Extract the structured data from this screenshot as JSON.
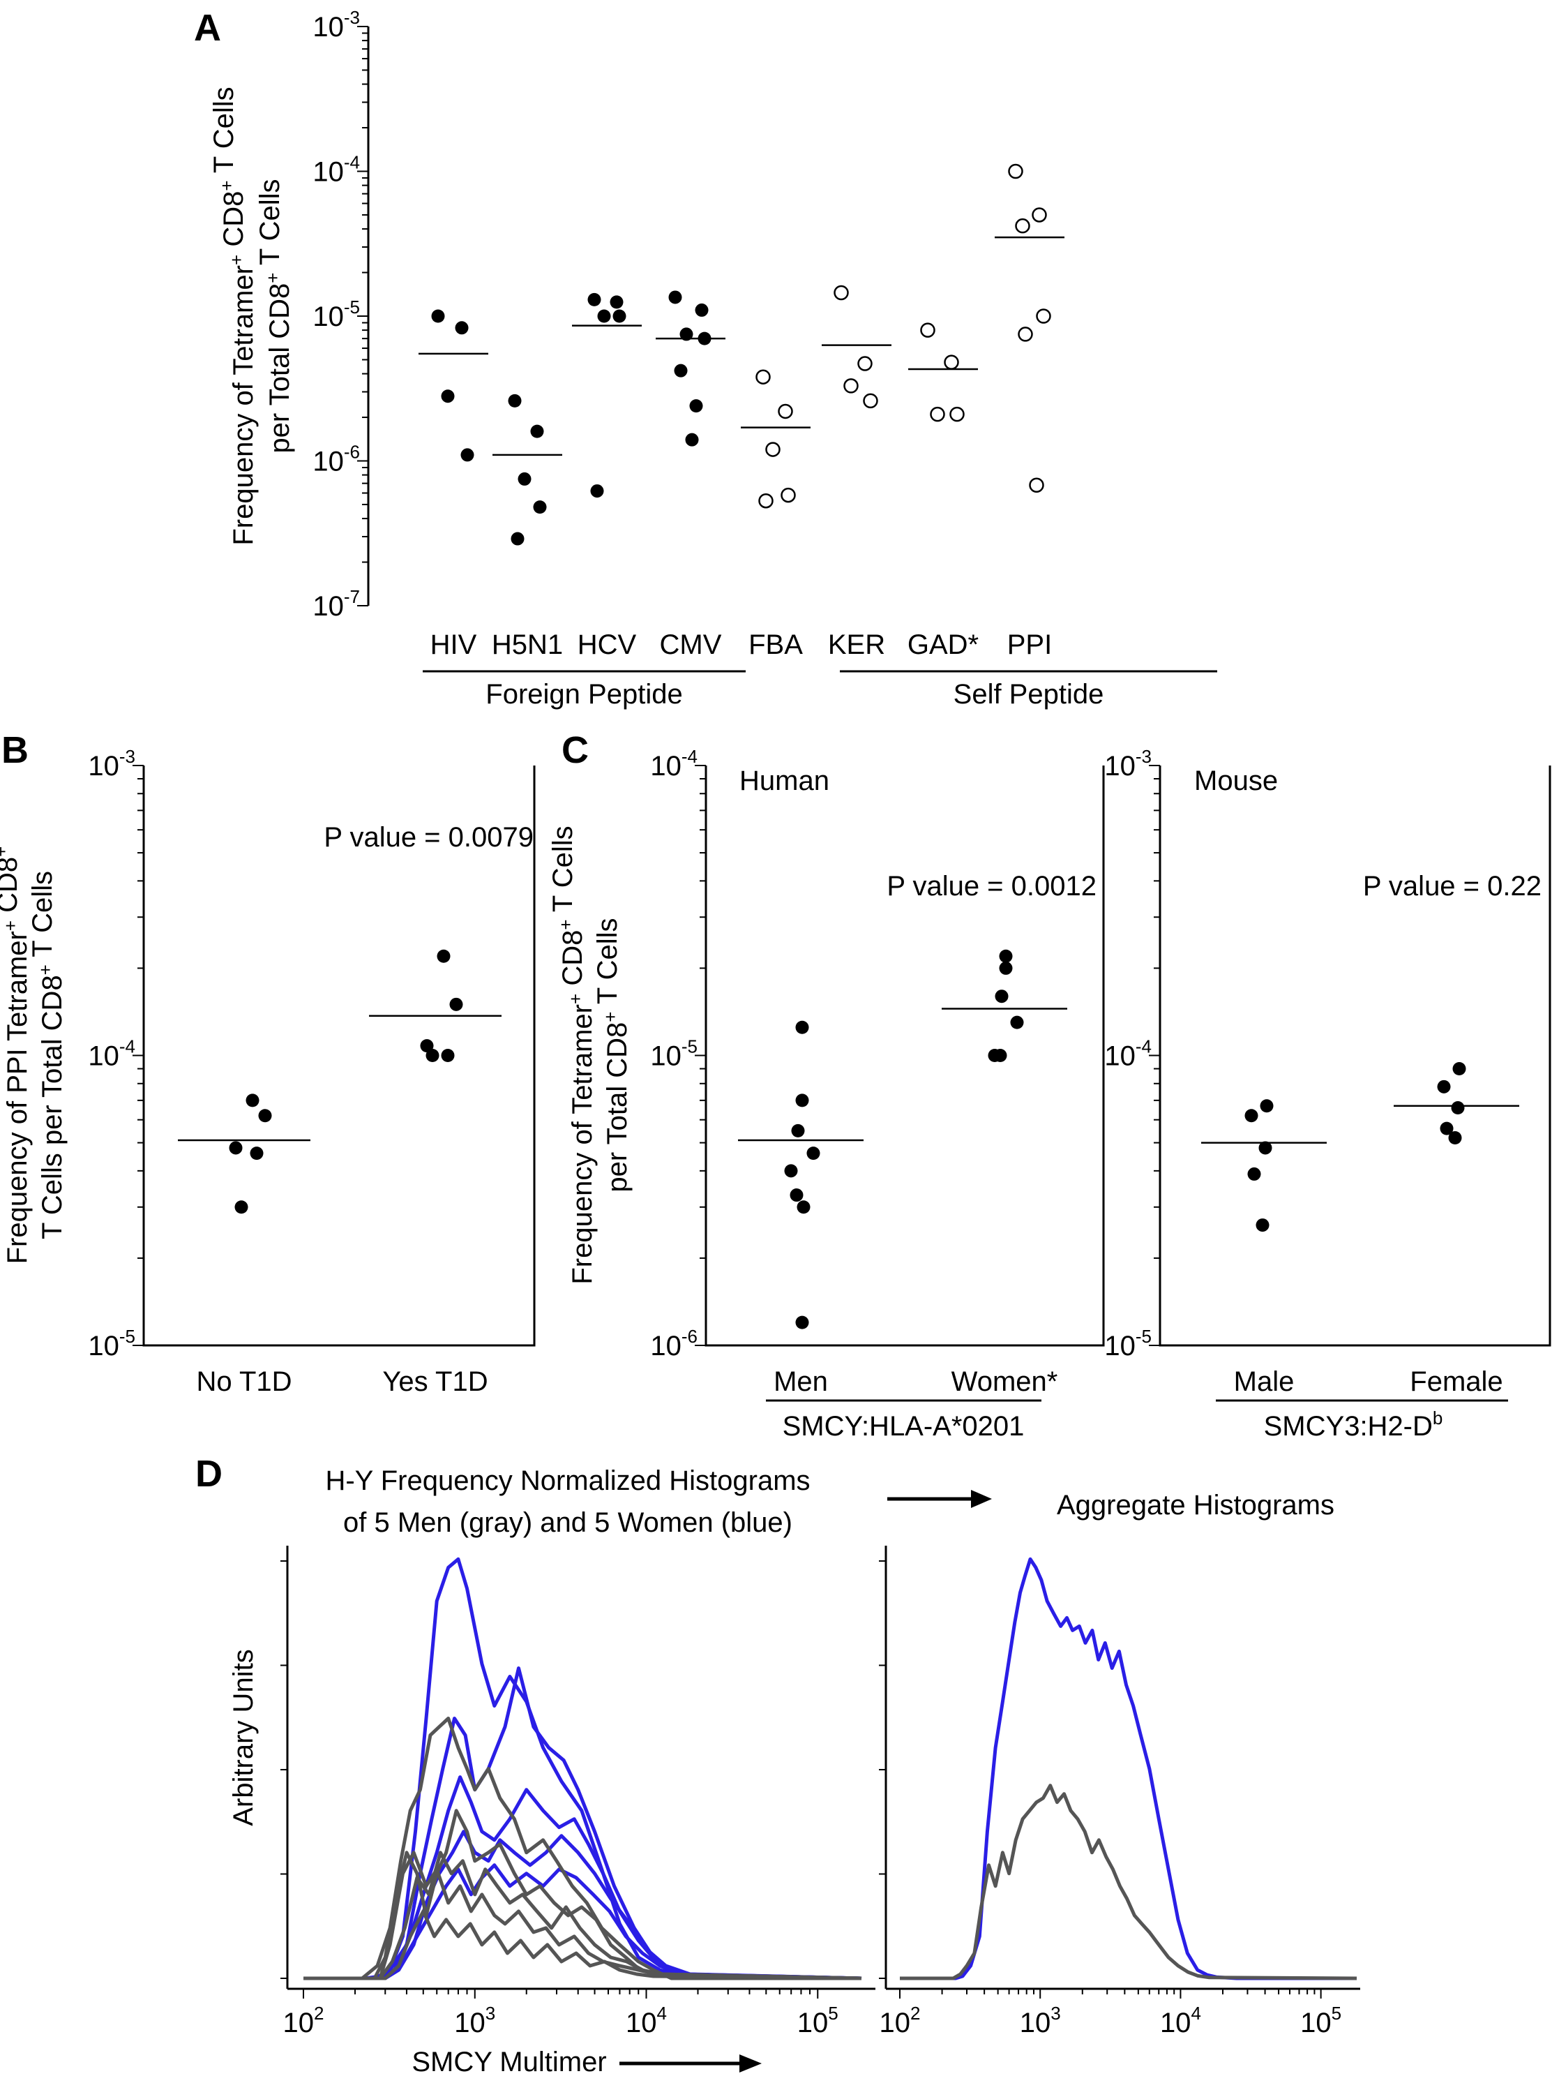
{
  "panels": {
    "a": {
      "letter": "A"
    },
    "b": {
      "letter": "B"
    },
    "c": {
      "letter": "C"
    },
    "d": {
      "letter": "D"
    }
  },
  "chart_data": [
    {
      "id": "A",
      "type": "scatter",
      "yscale": "log",
      "ylim": [
        1e-07,
        0.001
      ],
      "ytick_labels": [
        "10-3",
        "10-4",
        "10-5",
        "10-6",
        "10-7"
      ],
      "ylabel_line1": "Frequency of Tetramer+ CD8+ T Cells",
      "ylabel_line2": "per Total CD8+ T Cells",
      "categories": [
        "HIV",
        "H5N1",
        "HCV",
        "CMV",
        "FBA",
        "KER",
        "GAD*",
        "PPI"
      ],
      "groups": [
        {
          "label": "Foreign Peptide",
          "from": 0,
          "to": 3
        },
        {
          "label": "Self Peptide",
          "from": 4,
          "to": 7
        }
      ],
      "series": [
        {
          "category": "HIV",
          "filled": true,
          "values": [
            1e-05,
            8.3e-06,
            2.8e-06,
            1.1e-06
          ],
          "mean": 5.5e-06
        },
        {
          "category": "H5N1",
          "filled": true,
          "values": [
            2.6e-06,
            1.6e-06,
            7.5e-07,
            4.8e-07,
            2.9e-07
          ],
          "mean": 1.1e-06
        },
        {
          "category": "HCV",
          "filled": true,
          "values": [
            1.3e-05,
            1.25e-05,
            1e-05,
            1e-05,
            6.2e-07
          ],
          "mean": 8.6e-06
        },
        {
          "category": "CMV",
          "filled": true,
          "values": [
            1.35e-05,
            1.1e-05,
            7.5e-06,
            7e-06,
            4.2e-06,
            2.4e-06,
            1.4e-06
          ],
          "mean": 7e-06
        },
        {
          "category": "FBA",
          "filled": false,
          "values": [
            3.8e-06,
            2.2e-06,
            1.2e-06,
            5.8e-07,
            5.3e-07
          ],
          "mean": 1.7e-06
        },
        {
          "category": "KER",
          "filled": false,
          "values": [
            1.45e-05,
            4.7e-06,
            3.3e-06,
            2.6e-06
          ],
          "mean": 6.3e-06
        },
        {
          "category": "GAD*",
          "filled": false,
          "values": [
            8e-06,
            4.8e-06,
            2.1e-06,
            2.1e-06
          ],
          "mean": 4.3e-06
        },
        {
          "category": "PPI",
          "filled": false,
          "values": [
            0.0001,
            5e-05,
            4.2e-05,
            1e-05,
            7.5e-06,
            6.8e-07
          ],
          "mean": 3.5e-05
        }
      ]
    },
    {
      "id": "B",
      "type": "scatter",
      "yscale": "log",
      "ylim": [
        1e-05,
        0.001
      ],
      "ytick_labels": [
        "10-3",
        "10-4",
        "10-5"
      ],
      "ylabel_line1": "Frequency of PPI Tetramer+ CD8+",
      "ylabel_line2": "T Cells per Total CD8+ T Cells",
      "categories": [
        "No T1D",
        "Yes T1D"
      ],
      "annotation": "P value = 0.0079",
      "series": [
        {
          "category": "No T1D",
          "filled": true,
          "values": [
            7e-05,
            6.2e-05,
            4.8e-05,
            4.6e-05,
            3e-05
          ],
          "mean": 5.1e-05
        },
        {
          "category": "Yes T1D",
          "filled": true,
          "values": [
            0.00022,
            0.00015,
            0.000108,
            0.0001,
            0.0001
          ],
          "mean": 0.000137
        }
      ]
    },
    {
      "id": "C-human",
      "type": "scatter",
      "yscale": "log",
      "ylim": [
        1e-06,
        0.0001
      ],
      "ytick_labels": [
        "10-4",
        "10-5",
        "10-6"
      ],
      "ylabel_line1": "Frequency of Tetramer+ CD8+ T Cells",
      "ylabel_line2": "per Total CD8+ T Cells",
      "title": "Human",
      "categories": [
        "Men",
        "Women*"
      ],
      "group_label": "SMCY:HLA-A*0201",
      "annotation": "P value = 0.0012",
      "series": [
        {
          "category": "Men",
          "filled": true,
          "values": [
            1.25e-05,
            7e-06,
            5.5e-06,
            4.6e-06,
            4e-06,
            3.3e-06,
            3e-06,
            1.2e-06
          ],
          "mean": 5.1e-06
        },
        {
          "category": "Women*",
          "filled": true,
          "values": [
            2.2e-05,
            2e-05,
            1.6e-05,
            1.3e-05,
            1e-05,
            1e-05
          ],
          "mean": 1.45e-05
        }
      ]
    },
    {
      "id": "C-mouse",
      "type": "scatter",
      "yscale": "log",
      "ylim": [
        1e-05,
        0.001
      ],
      "ytick_labels": [
        "10-3",
        "10-4",
        "10-5"
      ],
      "title": "Mouse",
      "categories": [
        "Male",
        "Female"
      ],
      "group_label_main": "SMCY3:H2-D",
      "group_label_sup": "b",
      "annotation": "P value = 0.22",
      "series": [
        {
          "category": "Male",
          "filled": true,
          "values": [
            6.7e-05,
            6.2e-05,
            4.8e-05,
            3.9e-05,
            2.6e-05
          ],
          "mean": 5e-05
        },
        {
          "category": "Female",
          "filled": true,
          "values": [
            9e-05,
            7.8e-05,
            6.6e-05,
            5.6e-05,
            5.2e-05
          ],
          "mean": 6.7e-05
        }
      ]
    },
    {
      "id": "D",
      "type": "line",
      "xscale": "log",
      "xlim": [
        100,
        180000
      ],
      "xtick_labels": [
        "102",
        "103",
        "104",
        "105"
      ],
      "title_line1": "H-Y Frequency Normalized Histograms",
      "title_line2": "of 5 Men (gray) and 5 Women (blue)",
      "aggregate_title": "Aggregate Histograms",
      "ylabel": "Arbitrary Units",
      "xlabel": "SMCY Multimer",
      "colors": {
        "men": "#555555",
        "women": "#2a1ee6"
      },
      "individual": {
        "women": [
          {
            "x": [
              100,
              230,
              280,
              320,
              380,
              450,
              520,
              600,
              700,
              800,
              900,
              1100,
              1300,
              1600,
              2000,
              2500,
              3200,
              4200,
              5500,
              7000,
              9000,
              12000,
              15000,
              20000,
              25000,
              180000
            ],
            "y": [
              0,
              0,
              0.005,
              0.02,
              0.1,
              0.35,
              0.62,
              0.9,
              0.98,
              1.0,
              0.93,
              0.75,
              0.65,
              0.72,
              0.66,
              0.55,
              0.47,
              0.4,
              0.26,
              0.13,
              0.05,
              0.02,
              0.01,
              0.0,
              0,
              0
            ]
          },
          {
            "x": [
              100,
              260,
              320,
              400,
              480,
              560,
              650,
              760,
              880,
              1000,
              1200,
              1500,
              1800,
              2200,
              2700,
              3300,
              4000,
              5000,
              6500,
              8500,
              11000,
              15000,
              180000
            ],
            "y": [
              0,
              0,
              0.02,
              0.08,
              0.25,
              0.38,
              0.5,
              0.62,
              0.58,
              0.45,
              0.5,
              0.6,
              0.74,
              0.6,
              0.55,
              0.52,
              0.45,
              0.35,
              0.22,
              0.12,
              0.05,
              0.01,
              0
            ]
          },
          {
            "x": [
              100,
              280,
              340,
              420,
              500,
              600,
              700,
              820,
              950,
              1100,
              1300,
              1600,
              2000,
              2500,
              3100,
              3800,
              4600,
              5600,
              7000,
              9000,
              12000,
              16000,
              180000
            ],
            "y": [
              0,
              0,
              0.02,
              0.1,
              0.2,
              0.3,
              0.4,
              0.48,
              0.42,
              0.35,
              0.33,
              0.38,
              0.45,
              0.4,
              0.36,
              0.38,
              0.32,
              0.25,
              0.16,
              0.09,
              0.03,
              0.01,
              0
            ]
          },
          {
            "x": [
              100,
              300,
              360,
              440,
              520,
              620,
              740,
              860,
              1000,
              1200,
              1400,
              1700,
              2100,
              2600,
              3200,
              4000,
              5000,
              6200,
              8000,
              10000,
              13000,
              18000,
              180000
            ],
            "y": [
              0,
              0,
              0.02,
              0.08,
              0.18,
              0.25,
              0.3,
              0.35,
              0.3,
              0.28,
              0.33,
              0.3,
              0.27,
              0.3,
              0.34,
              0.3,
              0.25,
              0.19,
              0.13,
              0.07,
              0.03,
              0.01,
              0
            ]
          },
          {
            "x": [
              100,
              300,
              380,
              460,
              560,
              680,
              800,
              950,
              1100,
              1300,
              1600,
              2000,
              2500,
              3100,
              3900,
              4900,
              6100,
              7600,
              9500,
              12000,
              16000,
              180000
            ],
            "y": [
              0,
              0,
              0.04,
              0.1,
              0.16,
              0.22,
              0.26,
              0.2,
              0.24,
              0.27,
              0.22,
              0.25,
              0.22,
              0.26,
              0.24,
              0.2,
              0.16,
              0.1,
              0.06,
              0.03,
              0.01,
              0
            ]
          }
        ],
        "men": [
          {
            "x": [
              100,
              220,
              270,
              320,
              370,
              420,
              480,
              550,
              620,
              700,
              800,
              900,
              1000,
              1200,
              1400,
              1700,
              2000,
              2500,
              3000,
              3700,
              4500,
              5500,
              7000,
              9000,
              11000,
              14000,
              180000
            ],
            "y": [
              0,
              0,
              0.03,
              0.12,
              0.28,
              0.4,
              0.45,
              0.58,
              0.6,
              0.62,
              0.55,
              0.5,
              0.45,
              0.5,
              0.43,
              0.38,
              0.3,
              0.33,
              0.28,
              0.22,
              0.18,
              0.12,
              0.08,
              0.04,
              0.02,
              0,
              0
            ]
          },
          {
            "x": [
              100,
              260,
              300,
              350,
              400,
              460,
              520,
              600,
              680,
              780,
              900,
              1000,
              1200,
              1400,
              1700,
              2000,
              2400,
              2900,
              3500,
              4200,
              5100,
              6200,
              7600,
              9200,
              12000,
              180000
            ],
            "y": [
              0,
              0,
              0.05,
              0.2,
              0.3,
              0.25,
              0.15,
              0.25,
              0.3,
              0.4,
              0.35,
              0.28,
              0.3,
              0.32,
              0.25,
              0.2,
              0.22,
              0.18,
              0.15,
              0.17,
              0.14,
              0.08,
              0.05,
              0.02,
              0.01,
              0
            ]
          },
          {
            "x": [
              100,
              280,
              330,
              390,
              460,
              540,
              630,
              730,
              850,
              1000,
              1150,
              1350,
              1600,
              1900,
              2300,
              2800,
              3400,
              4100,
              5000,
              6200,
              7700,
              9500,
              12000,
              180000
            ],
            "y": [
              0,
              0,
              0.04,
              0.12,
              0.24,
              0.2,
              0.3,
              0.25,
              0.28,
              0.2,
              0.26,
              0.22,
              0.18,
              0.2,
              0.16,
              0.12,
              0.17,
              0.12,
              0.08,
              0.05,
              0.04,
              0.02,
              0.01,
              0
            ]
          },
          {
            "x": [
              100,
              280,
              320,
              380,
              440,
              520,
              600,
              700,
              820,
              950,
              1100,
              1300,
              1500,
              1800,
              2200,
              2600,
              3100,
              3800,
              4600,
              5600,
              7000,
              9000,
              11500,
              180000
            ],
            "y": [
              0,
              0,
              0.08,
              0.25,
              0.3,
              0.22,
              0.26,
              0.18,
              0.22,
              0.16,
              0.2,
              0.15,
              0.13,
              0.16,
              0.11,
              0.12,
              0.08,
              0.1,
              0.06,
              0.04,
              0.03,
              0.02,
              0.01,
              0
            ]
          },
          {
            "x": [
              100,
              300,
              360,
              420,
              500,
              580,
              680,
              800,
              940,
              1100,
              1300,
              1550,
              1850,
              2200,
              2650,
              3200,
              3900,
              4700,
              5700,
              7000,
              8800,
              11000,
              180000
            ],
            "y": [
              0,
              0,
              0.03,
              0.1,
              0.16,
              0.1,
              0.14,
              0.1,
              0.13,
              0.08,
              0.11,
              0.06,
              0.09,
              0.05,
              0.08,
              0.04,
              0.06,
              0.03,
              0.04,
              0.02,
              0.01,
              0.005,
              0
            ]
          }
        ]
      },
      "aggregate": {
        "women": {
          "x": [
            100,
            250,
            280,
            320,
            370,
            420,
            480,
            540,
            600,
            660,
            720,
            780,
            850,
            930,
            1020,
            1120,
            1250,
            1400,
            1550,
            1700,
            1900,
            2100,
            2350,
            2600,
            2900,
            3250,
            3650,
            4100,
            4600,
            5200,
            6000,
            7000,
            8200,
            9600,
            11200,
            13200,
            15500,
            18000,
            25000,
            180000
          ],
          "y": [
            0,
            0,
            0.005,
            0.03,
            0.1,
            0.35,
            0.55,
            0.66,
            0.76,
            0.85,
            0.92,
            0.96,
            1.0,
            0.98,
            0.95,
            0.9,
            0.87,
            0.84,
            0.86,
            0.83,
            0.84,
            0.8,
            0.83,
            0.76,
            0.8,
            0.74,
            0.78,
            0.7,
            0.65,
            0.58,
            0.5,
            0.38,
            0.26,
            0.14,
            0.06,
            0.02,
            0.008,
            0.003,
            0,
            0
          ]
        },
        "men": {
          "x": [
            100,
            240,
            270,
            300,
            340,
            380,
            430,
            480,
            540,
            600,
            670,
            750,
            840,
            940,
            1050,
            1180,
            1320,
            1480,
            1650,
            1850,
            2080,
            2340,
            2620,
            2950,
            3300,
            3700,
            4150,
            4700,
            5300,
            6000,
            7000,
            8200,
            9600,
            11300,
            13300,
            16000,
            180000
          ],
          "y": [
            0,
            0,
            0.01,
            0.03,
            0.06,
            0.17,
            0.27,
            0.22,
            0.3,
            0.25,
            0.33,
            0.38,
            0.4,
            0.42,
            0.43,
            0.46,
            0.42,
            0.44,
            0.4,
            0.38,
            0.35,
            0.3,
            0.33,
            0.29,
            0.26,
            0.22,
            0.19,
            0.15,
            0.13,
            0.11,
            0.08,
            0.05,
            0.03,
            0.015,
            0.006,
            0.002,
            0
          ]
        }
      }
    }
  ]
}
